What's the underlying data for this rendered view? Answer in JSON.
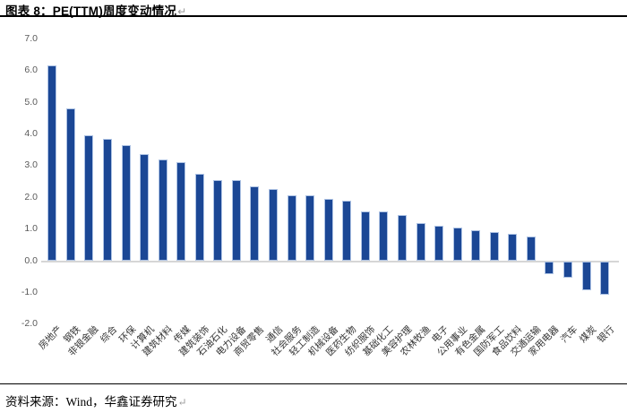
{
  "header": {
    "title": "图表 8：PE(TTM)周度变动情况",
    "return_mark": "↵"
  },
  "footer": {
    "source_label": "资料来源：Wind，华鑫证券研究",
    "return_mark": "↵"
  },
  "colors": {
    "bar_fill": "#1b4795",
    "bar_border": "#aec3e4",
    "axis_line": "#d6d6d6",
    "tick_text": "#595959",
    "category_text": "#333333"
  },
  "chart_data": {
    "type": "bar",
    "title": "PE(TTM)周度变动情况",
    "xlabel": "",
    "ylabel": "",
    "ylim": [
      -2.0,
      7.0
    ],
    "ytick_labels": [
      "7.0",
      "6.0",
      "5.0",
      "4.0",
      "3.0",
      "2.0",
      "1.0",
      "0.0",
      "-1.0",
      "-2.0"
    ],
    "grid": false,
    "legend": false,
    "categories": [
      "房地产",
      "钢铁",
      "非银金融",
      "综合",
      "环保",
      "计算机",
      "建筑材料",
      "传媒",
      "建筑装饰",
      "石油石化",
      "电力设备",
      "商贸零售",
      "通信",
      "社会服务",
      "轻工制造",
      "机械设备",
      "医药生物",
      "纺织服饰",
      "基础化工",
      "美容护理",
      "农林牧渔",
      "电子",
      "公用事业",
      "有色金属",
      "国防军工",
      "食品饮料",
      "交通运输",
      "家用电器",
      "汽车",
      "煤炭",
      "银行"
    ],
    "values": [
      6.15,
      4.8,
      3.95,
      3.85,
      3.65,
      3.35,
      3.2,
      3.1,
      2.75,
      2.55,
      2.55,
      2.35,
      2.25,
      2.05,
      2.05,
      1.95,
      1.9,
      1.55,
      1.55,
      1.45,
      1.2,
      1.1,
      1.05,
      0.95,
      0.9,
      0.85,
      0.75,
      -0.4,
      -0.5,
      -0.9,
      -1.05
    ]
  }
}
